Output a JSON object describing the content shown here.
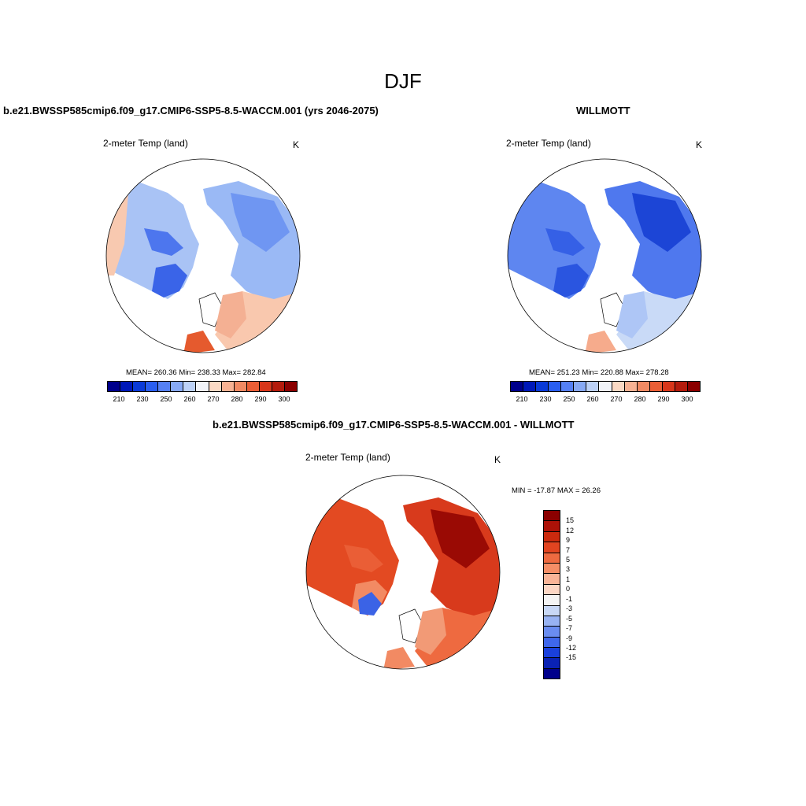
{
  "figure": {
    "title": "DJF"
  },
  "panels": [
    {
      "title": "b.e21.BWSSP585cmip6.f09_g17.CMIP6-SSP5-8.5-WACCM.001 (yrs 2046-2075)",
      "variable": "2-meter Temp (land)",
      "units": "K",
      "stats": "MEAN= 260.36  Min= 238.33  Max= 282.84",
      "mean": 260.36,
      "min": 238.33,
      "max": 282.84
    },
    {
      "title": "WILLMOTT",
      "variable": "2-meter Temp (land)",
      "units": "K",
      "stats": "MEAN= 251.23  Min= 220.88  Max= 278.28",
      "mean": 251.23,
      "min": 220.88,
      "max": 278.28
    },
    {
      "title": "b.e21.BWSSP585cmip6.f09_g17.CMIP6-SSP5-8.5-WACCM.001 - WILLMOTT",
      "variable": "2-meter Temp (land)",
      "units": "K",
      "stats": "MIN = -17.87 MAX =  26.26",
      "min": -17.87,
      "max": 26.26
    }
  ],
  "colorbar_abs": {
    "tick_labels": [
      "210",
      "230",
      "250",
      "260",
      "270",
      "280",
      "290",
      "300"
    ],
    "colors": [
      "#00008b",
      "#0018b8",
      "#0a3ad8",
      "#2a5ef0",
      "#5580f5",
      "#87a9f5",
      "#bcd1f7",
      "#f1f3f8",
      "#fbd9c4",
      "#f7b293",
      "#f18a63",
      "#ea5e36",
      "#d8361a",
      "#b41b0c",
      "#8b0000"
    ]
  },
  "colorbar_diff": {
    "labels": [
      "15",
      "12",
      "9",
      "7",
      "5",
      "3",
      "1",
      "0",
      "-1",
      "-3",
      "-5",
      "-7",
      "-9",
      "-12",
      "-15"
    ],
    "colors": [
      "#8b0000",
      "#ad1208",
      "#cc2a0e",
      "#e24420",
      "#ee6a40",
      "#f58e66",
      "#f9b497",
      "#fcd6c4",
      "#f4f4f4",
      "#c8d8f6",
      "#98b3f3",
      "#6a8df1",
      "#3f67ec",
      "#1a40dc",
      "#0a22b4",
      "#00008b"
    ]
  }
}
